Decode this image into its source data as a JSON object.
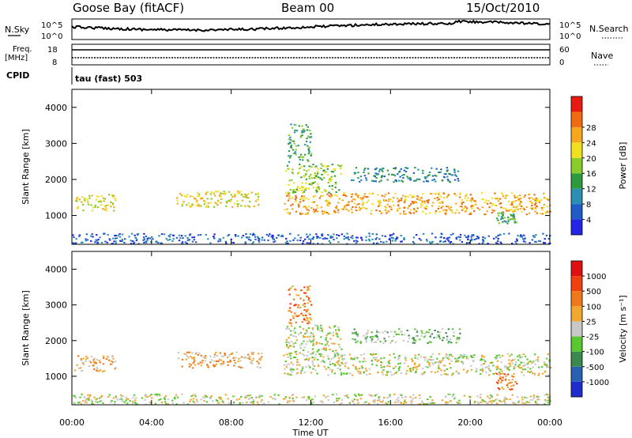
{
  "header": {
    "station": "Goose Bay (fitACF)",
    "beam": "Beam 00",
    "date": "15/Oct/2010"
  },
  "strip_nsky": {
    "left_label": "N.Sky",
    "right_label": "N.Search",
    "left_ticks": [
      "10^5",
      "10^0"
    ],
    "right_ticks": [
      "10^5",
      "10^0"
    ]
  },
  "strip_freq": {
    "left_label_1": "Freq.",
    "left_label_2": "[MHz]",
    "right_label": "Nave",
    "left_ticks": [
      "18",
      "8"
    ],
    "right_ticks": [
      "60",
      "0"
    ]
  },
  "cpid": {
    "label": "CPID",
    "value": "tau (fast) 503"
  },
  "chart_data": [
    {
      "type": "heatmap",
      "quantity": "power",
      "ylabel": "Slant Range [km]",
      "xlabel": "",
      "x_ticks": [
        "00:00",
        "04:00",
        "08:00",
        "12:00",
        "16:00",
        "20:00",
        "00:00"
      ],
      "x_range_hours": [
        0,
        24
      ],
      "y_range_km": [
        200,
        4500
      ],
      "y_ticks": [
        "1000",
        "2000",
        "3000",
        "4000"
      ],
      "colorbar": {
        "label": "Power [dB]",
        "ticks": [
          "4",
          "8",
          "12",
          "16",
          "20",
          "24",
          "28"
        ],
        "colors": [
          "#2424e6",
          "#1f5cc8",
          "#2a8fb0",
          "#2e9a3e",
          "#8acc2a",
          "#f0e020",
          "#f5a81e",
          "#f06a10",
          "#e81a10"
        ]
      },
      "bands": [
        {
          "t0": 0.1,
          "t1": 2.2,
          "r0": 1150,
          "r1": 1600,
          "level": 5
        },
        {
          "t0": 5.2,
          "t1": 9.5,
          "r0": 1250,
          "r1": 1700,
          "level": 5
        },
        {
          "t0": 10.6,
          "t1": 24,
          "r0": 1050,
          "r1": 1650,
          "level": 6
        },
        {
          "t0": 10.7,
          "t1": 13.5,
          "r0": 1650,
          "r1": 2450,
          "level": 4
        },
        {
          "t0": 10.8,
          "t1": 12.0,
          "r0": 2500,
          "r1": 3550,
          "level": 3
        },
        {
          "t0": 14.0,
          "t1": 19.5,
          "r0": 1950,
          "r1": 2350,
          "level": 2
        },
        {
          "t0": 21.3,
          "t1": 22.3,
          "r0": 800,
          "r1": 1100,
          "level": 3
        },
        {
          "t0": 0.0,
          "t1": 24,
          "r0": 230,
          "r1": 520,
          "level": 1
        }
      ]
    },
    {
      "type": "heatmap",
      "quantity": "velocity",
      "ylabel": "Slant Range [km]",
      "xlabel": "Time UT",
      "x_ticks": [
        "00:00",
        "04:00",
        "08:00",
        "12:00",
        "16:00",
        "20:00",
        "00:00"
      ],
      "x_range_hours": [
        0,
        24
      ],
      "y_range_km": [
        200,
        4500
      ],
      "y_ticks": [
        "1000",
        "2000",
        "3000",
        "4000"
      ],
      "colorbar": {
        "label": "Velocity [m s⁻¹]",
        "ticks": [
          "1000",
          "500",
          "100",
          "25",
          "-25",
          "-100",
          "-500",
          "-1000"
        ],
        "colors": [
          "#1f2ccc",
          "#2a60b0",
          "#3a8a50",
          "#58c830",
          "#c8c8c8",
          "#f0a830",
          "#f07818",
          "#f04010",
          "#e01010"
        ]
      },
      "bands": [
        {
          "t0": 0.1,
          "t1": 2.2,
          "r0": 1150,
          "r1": 1600,
          "level": 5
        },
        {
          "t0": 5.2,
          "t1": 9.5,
          "r0": 1250,
          "r1": 1700,
          "level": 5
        },
        {
          "t0": 10.6,
          "t1": 24,
          "r0": 1050,
          "r1": 1650,
          "level": 4
        },
        {
          "t0": 10.7,
          "t1": 13.5,
          "r0": 1650,
          "r1": 2450,
          "level": 4
        },
        {
          "t0": 10.8,
          "t1": 12.0,
          "r0": 2500,
          "r1": 3550,
          "level": 6
        },
        {
          "t0": 14.0,
          "t1": 19.5,
          "r0": 1950,
          "r1": 2350,
          "level": 3
        },
        {
          "t0": 21.3,
          "t1": 22.3,
          "r0": 650,
          "r1": 1100,
          "level": 6
        },
        {
          "t0": 0.0,
          "t1": 24,
          "r0": 230,
          "r1": 520,
          "level": 4
        }
      ]
    }
  ]
}
